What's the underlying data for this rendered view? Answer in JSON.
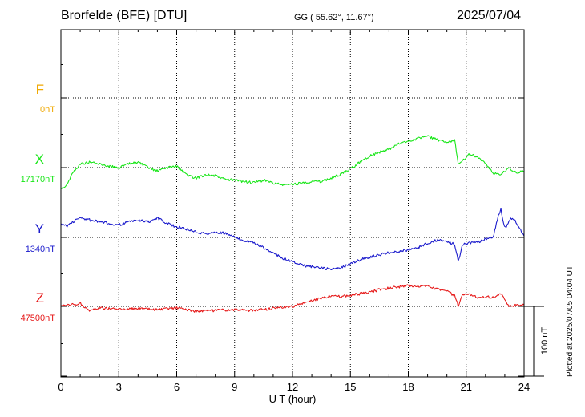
{
  "header": {
    "station": "Brorfelde (BFE)  [DTU]",
    "coords": "GG ( 55.62°,  11.67°)",
    "date": "2025/07/04"
  },
  "footer_note": "Plotted at 2025/07/05 04:04 UT",
  "colors": {
    "F": "#f0a800",
    "X": "#19e619",
    "Y": "#1a1acc",
    "Z": "#e61919"
  },
  "chart_data": {
    "type": "line",
    "title": "Brorfelde (BFE)  [DTU]",
    "xlabel": "U T (hour)",
    "xlim": [
      0,
      24
    ],
    "xticks": [
      0,
      3,
      6,
      9,
      12,
      15,
      18,
      21,
      24
    ],
    "grid": true,
    "scale_bar": {
      "label": "100 nT",
      "nT": 100
    },
    "channels": [
      {
        "name": "F",
        "baseline_label": "0nT",
        "baseline_nT": 0,
        "color": "#f0a800",
        "values": []
      },
      {
        "name": "X",
        "baseline_label": "17170nT",
        "baseline_nT": 17170,
        "color": "#19e619",
        "x": [
          0,
          0.3,
          0.6,
          1.0,
          1.5,
          2.0,
          2.5,
          3.0,
          3.5,
          4.0,
          4.5,
          5.0,
          5.5,
          6.0,
          6.5,
          7.0,
          7.5,
          8.0,
          8.5,
          9.0,
          9.5,
          10.0,
          10.5,
          11.0,
          11.5,
          12.0,
          12.5,
          13.0,
          13.5,
          14.0,
          14.5,
          15.0,
          15.5,
          16.0,
          16.5,
          17.0,
          17.5,
          18.0,
          18.5,
          19.0,
          19.5,
          20.0,
          20.4,
          20.6,
          20.8,
          21.2,
          21.6,
          22.0,
          22.4,
          22.8,
          23.2,
          23.6,
          24.0
        ],
        "values": [
          17140,
          17145,
          17162,
          17175,
          17178,
          17175,
          17172,
          17170,
          17175,
          17178,
          17170,
          17165,
          17170,
          17172,
          17160,
          17155,
          17160,
          17158,
          17153,
          17152,
          17150,
          17148,
          17152,
          17148,
          17145,
          17146,
          17148,
          17150,
          17150,
          17155,
          17160,
          17168,
          17178,
          17187,
          17192,
          17196,
          17204,
          17208,
          17212,
          17215,
          17210,
          17205,
          17210,
          17175,
          17180,
          17190,
          17185,
          17175,
          17162,
          17160,
          17170,
          17162,
          17165
        ]
      },
      {
        "name": "Y",
        "baseline_label": "1340nT",
        "baseline_nT": 1340,
        "color": "#1a1acc",
        "x": [
          0,
          0.3,
          0.6,
          1.0,
          1.5,
          2.0,
          2.5,
          3.0,
          3.5,
          4.0,
          4.5,
          5.0,
          5.5,
          6.0,
          6.5,
          7.0,
          7.5,
          8.0,
          8.5,
          9.0,
          9.5,
          10.0,
          10.5,
          11.0,
          11.5,
          12.0,
          12.5,
          13.0,
          13.5,
          14.0,
          14.5,
          15.0,
          15.5,
          16.0,
          16.5,
          17.0,
          17.5,
          18.0,
          18.5,
          19.0,
          19.5,
          20.0,
          20.4,
          20.6,
          20.8,
          21.2,
          21.6,
          22.0,
          22.4,
          22.6,
          22.8,
          23.0,
          23.3,
          23.6,
          24.0
        ],
        "values": [
          1360,
          1356,
          1362,
          1368,
          1365,
          1362,
          1360,
          1358,
          1362,
          1365,
          1362,
          1368,
          1360,
          1355,
          1352,
          1348,
          1345,
          1347,
          1346,
          1340,
          1336,
          1332,
          1325,
          1318,
          1310,
          1305,
          1300,
          1298,
          1296,
          1294,
          1296,
          1302,
          1308,
          1312,
          1315,
          1318,
          1320,
          1322,
          1325,
          1332,
          1336,
          1334,
          1330,
          1306,
          1330,
          1332,
          1333,
          1338,
          1340,
          1365,
          1380,
          1352,
          1368,
          1362,
          1342
        ]
      },
      {
        "name": "Z",
        "baseline_label": "47500nT",
        "baseline_nT": 47500,
        "color": "#e61919",
        "x": [
          0,
          0.5,
          1.0,
          1.5,
          2.0,
          3.0,
          4.0,
          5.0,
          6.0,
          7.0,
          8.0,
          9.0,
          10.0,
          11.0,
          12.0,
          12.5,
          13.0,
          13.5,
          14.0,
          14.5,
          15.0,
          15.5,
          16.0,
          16.5,
          17.0,
          17.5,
          18.0,
          18.5,
          19.0,
          19.5,
          20.0,
          20.4,
          20.6,
          20.8,
          21.2,
          21.6,
          22.0,
          22.4,
          22.8,
          23.2,
          23.6,
          24.0
        ],
        "values": [
          47500,
          47502,
          47504,
          47494,
          47498,
          47496,
          47497,
          47495,
          47498,
          47493,
          47494,
          47495,
          47494,
          47497,
          47500,
          47504,
          47508,
          47512,
          47515,
          47514,
          47516,
          47518,
          47520,
          47524,
          47526,
          47528,
          47530,
          47528,
          47530,
          47525,
          47522,
          47515,
          47500,
          47516,
          47517,
          47513,
          47514,
          47513,
          47518,
          47500,
          47502,
          47502
        ]
      }
    ]
  }
}
